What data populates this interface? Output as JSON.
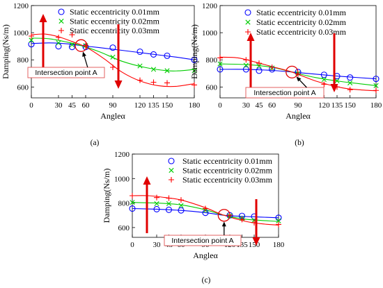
{
  "chart_data": [
    {
      "type": "scatter",
      "panel_label": "(a)",
      "xlabel": "Angleα",
      "ylabel": "Damping(Ns/m)",
      "xticks": [
        0,
        30,
        45,
        60,
        90,
        120,
        135,
        150,
        180
      ],
      "yticks": [
        600,
        800,
        1000,
        1200
      ],
      "xlim": [
        0,
        180
      ],
      "ylim": [
        520,
        1200
      ],
      "annotation": "Intersection point A",
      "intersection": [
        55,
        905
      ],
      "series": [
        {
          "name": "Static eccentricity 0.01mm",
          "marker": "circle",
          "color": "#0000ff",
          "x": [
            0,
            30,
            45,
            60,
            90,
            120,
            135,
            150,
            180
          ],
          "y": [
            915,
            900,
            895,
            895,
            890,
            860,
            840,
            830,
            800
          ],
          "fit": [
            [
              0,
              920
            ],
            [
              20,
              925
            ],
            [
              40,
              918
            ],
            [
              55,
              905
            ],
            [
              75,
              890
            ],
            [
              100,
              870
            ],
            [
              130,
              845
            ],
            [
              160,
              820
            ],
            [
              180,
              800
            ]
          ]
        },
        {
          "name": "Static eccentricity 0.02mm",
          "marker": "x",
          "color": "#00cc00",
          "x": [
            0,
            30,
            45,
            60,
            90,
            120,
            135,
            150,
            180
          ],
          "y": [
            945,
            925,
            910,
            905,
            820,
            755,
            730,
            720,
            720
          ],
          "fit": [
            [
              0,
              960
            ],
            [
              20,
              955
            ],
            [
              40,
              930
            ],
            [
              55,
              905
            ],
            [
              75,
              860
            ],
            [
              100,
              790
            ],
            [
              125,
              745
            ],
            [
              150,
              720
            ],
            [
              165,
              720
            ],
            [
              180,
              730
            ]
          ]
        },
        {
          "name": "Static eccentricity 0.03mm",
          "marker": "plus",
          "color": "#ff0000",
          "x": [
            0,
            30,
            45,
            60,
            90,
            120,
            135,
            150,
            180
          ],
          "y": [
            975,
            965,
            985,
            905,
            745,
            650,
            635,
            630,
            615
          ],
          "fit": [
            [
              0,
              985
            ],
            [
              15,
              990
            ],
            [
              30,
              970
            ],
            [
              45,
              935
            ],
            [
              60,
              895
            ],
            [
              80,
              810
            ],
            [
              100,
              710
            ],
            [
              120,
              645
            ],
            [
              140,
              610
            ],
            [
              160,
              605
            ],
            [
              180,
              625
            ]
          ]
        }
      ]
    },
    {
      "type": "scatter",
      "panel_label": "(b)",
      "xlabel": "Angleα",
      "ylabel": "Damping(Ns/m)",
      "xticks": [
        0,
        30,
        45,
        60,
        90,
        120,
        135,
        150,
        180
      ],
      "yticks": [
        600,
        800,
        1000,
        1200
      ],
      "xlim": [
        0,
        180
      ],
      "ylim": [
        520,
        1200
      ],
      "annotation": "Intersection point A",
      "intersection": [
        83,
        710
      ],
      "series": [
        {
          "name": "Static eccentricity 0.01mm",
          "marker": "circle",
          "color": "#0000ff",
          "x": [
            0,
            30,
            45,
            60,
            90,
            120,
            135,
            150,
            180
          ],
          "y": [
            730,
            730,
            720,
            730,
            710,
            690,
            680,
            670,
            660
          ],
          "fit": [
            [
              0,
              730
            ],
            [
              30,
              730
            ],
            [
              60,
              722
            ],
            [
              83,
              710
            ],
            [
              110,
              695
            ],
            [
              140,
              678
            ],
            [
              180,
              660
            ]
          ]
        },
        {
          "name": "Static eccentricity 0.02mm",
          "marker": "x",
          "color": "#00cc00",
          "x": [
            0,
            30,
            45,
            60,
            90,
            120,
            135,
            150,
            180
          ],
          "y": [
            770,
            760,
            755,
            740,
            700,
            655,
            645,
            630,
            610
          ],
          "fit": [
            [
              0,
              770
            ],
            [
              30,
              765
            ],
            [
              60,
              745
            ],
            [
              83,
              710
            ],
            [
              110,
              670
            ],
            [
              140,
              640
            ],
            [
              180,
              610
            ]
          ]
        },
        {
          "name": "Static eccentricity 0.03mm",
          "marker": "plus",
          "color": "#ff0000",
          "x": [
            0,
            30,
            45,
            60,
            90,
            120,
            135,
            150,
            180
          ],
          "y": [
            815,
            800,
            775,
            745,
            695,
            620,
            600,
            580,
            575
          ],
          "fit": [
            [
              0,
              820
            ],
            [
              20,
              815
            ],
            [
              40,
              785
            ],
            [
              60,
              750
            ],
            [
              83,
              710
            ],
            [
              110,
              645
            ],
            [
              140,
              595
            ],
            [
              160,
              580
            ],
            [
              180,
              572
            ]
          ]
        }
      ]
    },
    {
      "type": "scatter",
      "panel_label": "(c)",
      "xlabel": "Angleα",
      "ylabel": "Damping(Ns/m)",
      "xticks": [
        0,
        30,
        45,
        60,
        90,
        120,
        135,
        150,
        180
      ],
      "yticks": [
        600,
        800,
        1000,
        1200
      ],
      "xlim": [
        0,
        180
      ],
      "ylim": [
        520,
        1200
      ],
      "annotation": "Intersection point A",
      "intersection": [
        113,
        700
      ],
      "series": [
        {
          "name": "Static eccentricity 0.01mm",
          "marker": "circle",
          "color": "#0000ff",
          "x": [
            0,
            30,
            45,
            60,
            90,
            120,
            135,
            150,
            180
          ],
          "y": [
            755,
            750,
            745,
            740,
            720,
            700,
            695,
            690,
            680
          ],
          "fit": [
            [
              0,
              755
            ],
            [
              30,
              750
            ],
            [
              60,
              740
            ],
            [
              90,
              722
            ],
            [
              113,
              700
            ],
            [
              140,
              690
            ],
            [
              180,
              680
            ]
          ]
        },
        {
          "name": "Static eccentricity 0.02mm",
          "marker": "x",
          "color": "#00cc00",
          "x": [
            0,
            30,
            45,
            60,
            90,
            120,
            135,
            150,
            180
          ],
          "y": [
            805,
            795,
            795,
            780,
            740,
            695,
            675,
            660,
            655
          ],
          "fit": [
            [
              0,
              805
            ],
            [
              30,
              800
            ],
            [
              60,
              785
            ],
            [
              90,
              745
            ],
            [
              113,
              700
            ],
            [
              140,
              668
            ],
            [
              180,
              650
            ]
          ]
        },
        {
          "name": "Static eccentricity 0.03mm",
          "marker": "plus",
          "color": "#ff0000",
          "x": [
            0,
            30,
            45,
            60,
            90,
            120,
            135,
            150,
            180
          ],
          "y": [
            860,
            845,
            840,
            825,
            755,
            700,
            665,
            640,
            625
          ],
          "fit": [
            [
              0,
              860
            ],
            [
              20,
              860
            ],
            [
              40,
              845
            ],
            [
              60,
              825
            ],
            [
              90,
              762
            ],
            [
              113,
              700
            ],
            [
              140,
              650
            ],
            [
              160,
              630
            ],
            [
              180,
              620
            ]
          ]
        }
      ]
    }
  ]
}
